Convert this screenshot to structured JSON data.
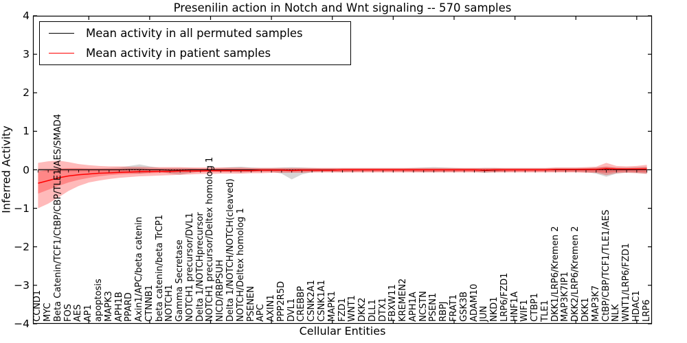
{
  "figure": {
    "title": "Presenilin action in Notch and Wnt signaling -- 570 samples",
    "xlabel": "Cellular Entities",
    "ylabel": "Inferred Activity"
  },
  "legend": {
    "items": [
      {
        "label": "Mean activity in all permuted samples",
        "color": "#000000"
      },
      {
        "label": "Mean activity in patient samples",
        "color": "#ff0000"
      }
    ]
  },
  "colors": {
    "permuted_line": "#000000",
    "patient_line": "#ff0000",
    "patient_band": "#ff0000",
    "permuted_band": "#808080",
    "zero_line": "#000000",
    "axis": "#000000"
  },
  "chart_data": {
    "type": "line",
    "title": "Presenilin action in Notch and Wnt signaling -- 570 samples",
    "xlabel": "Cellular Entities",
    "ylabel": "Inferred Activity",
    "ylim": [
      -4,
      4
    ],
    "y_ticks": [
      4,
      3,
      2,
      1,
      0,
      -1,
      -2,
      -3,
      -4
    ],
    "y_tick_labels": [
      "4",
      "3",
      "2",
      "1",
      "0",
      "−1",
      "−2",
      "−3",
      "−4"
    ],
    "grid": false,
    "legend_position": "upper left",
    "zero_reference_line": 0,
    "categories": [
      "CCND1",
      "MYC",
      "Beta Catenin/TCF1/CtBP/CBP/TLE1/AES/SMAD4",
      "FOS",
      "AES",
      "AP1",
      "apoptosis",
      "MAPK3",
      "APH1B",
      "PPARD",
      "Axin1/APC/beta catenin",
      "CTNNB1",
      "beta catenin/beta TrCP1",
      "NOTCH1",
      "Gamma Secretase",
      "NOTCH1 precursor/DVL1",
      "Delta 1/NOTCHprecursor",
      "NOTCH1 precursor/Deltex homolog 1",
      "NICD/RBPSUH",
      "Delta 1/NOTCH/NOTCH(cleaved)",
      "NOTCH/Deltex homolog 1",
      "PSENEN",
      "APC",
      "AXIN1",
      "PPP2R5D",
      "DVL1",
      "CREBBP",
      "CSNK2A1",
      "CSNK1A1",
      "MAPK1",
      "FZD1",
      "WNT1",
      "DKK2",
      "DLL1",
      "DTX1",
      "FBXW11",
      "KREMEN2",
      "APH1A",
      "NCSTN",
      "PSEN1",
      "RBPJ",
      "FRAT1",
      "GSK3B",
      "ADAM10",
      "JUN",
      "NKD1",
      "LRP6/FZD1",
      "HNF1A",
      "WIF1",
      "CTBP1",
      "TLE1",
      "DKK1/LRP6/Kremen 2",
      "MAP3K7IP1",
      "DKK2/LRP6/Kremen 2",
      "DKK1",
      "MAP3K7",
      "CtBP/CBP/TCF1/TLE1/AES",
      "NLK",
      "WNT1/LRP6/FZD1",
      "HDAC1",
      "LRP6"
    ],
    "series": [
      {
        "name": "Mean activity in all permuted samples",
        "color": "#000000",
        "values": [
          0,
          0,
          0,
          0,
          0,
          0,
          0,
          0,
          0,
          0.01,
          0.01,
          0,
          0,
          -0.01,
          -0.01,
          0,
          0,
          0,
          0,
          0,
          0,
          0,
          0,
          0,
          0,
          -0.01,
          0,
          0,
          0,
          0,
          0,
          0,
          0,
          0,
          0,
          0,
          0,
          0,
          0,
          0,
          0,
          0,
          0,
          0,
          -0.02,
          -0.01,
          0,
          0,
          0,
          0,
          0,
          0,
          0,
          0,
          0,
          0,
          0.01,
          0,
          0,
          0,
          0
        ]
      },
      {
        "name": "Mean activity in patient samples",
        "color": "#ff0000",
        "values": [
          -0.35,
          -0.28,
          -0.21,
          -0.16,
          -0.13,
          -0.11,
          -0.09,
          -0.08,
          -0.07,
          -0.06,
          -0.05,
          -0.05,
          -0.04,
          -0.04,
          -0.03,
          -0.03,
          -0.03,
          -0.02,
          -0.02,
          -0.02,
          -0.02,
          -0.02,
          -0.01,
          -0.01,
          -0.01,
          -0.02,
          -0.01,
          -0.01,
          -0.01,
          -0.01,
          0,
          0,
          0,
          0,
          0,
          0,
          0,
          0,
          0,
          0,
          0,
          0,
          0,
          0,
          -0.01,
          0,
          0,
          0,
          0,
          0,
          0,
          0.01,
          0.01,
          0.01,
          0.01,
          0.01,
          0.03,
          0.02,
          0.02,
          0.02,
          0.02
        ]
      }
    ],
    "bands": [
      {
        "name": "permuted-samples-range",
        "color": "#808080",
        "opacity": 0.32,
        "upper": [
          0.04,
          0.04,
          0.04,
          0.04,
          0.04,
          0.04,
          0.04,
          0.05,
          0.06,
          0.1,
          0.14,
          0.09,
          0.05,
          0.05,
          0.05,
          0.05,
          0.04,
          0.04,
          0.05,
          0.07,
          0.08,
          0.06,
          0.05,
          0.05,
          0.06,
          0.07,
          0.06,
          0.05,
          0.04,
          0.04,
          0.04,
          0.04,
          0.04,
          0.04,
          0.04,
          0.04,
          0.04,
          0.05,
          0.06,
          0.07,
          0.06,
          0.05,
          0.04,
          0.04,
          0.05,
          0.05,
          0.04,
          0.04,
          0.04,
          0.04,
          0.04,
          0.05,
          0.05,
          0.05,
          0.05,
          0.06,
          0.08,
          0.06,
          0.06,
          0.07,
          0.08
        ],
        "lower": [
          -0.04,
          -0.04,
          -0.04,
          -0.04,
          -0.04,
          -0.04,
          -0.04,
          -0.05,
          -0.06,
          -0.08,
          -0.1,
          -0.07,
          -0.05,
          -0.1,
          -0.13,
          -0.08,
          -0.05,
          -0.04,
          -0.05,
          -0.06,
          -0.07,
          -0.06,
          -0.05,
          -0.05,
          -0.1,
          -0.25,
          -0.12,
          -0.06,
          -0.05,
          -0.05,
          -0.06,
          -0.05,
          -0.04,
          -0.04,
          -0.04,
          -0.04,
          -0.04,
          -0.05,
          -0.06,
          -0.06,
          -0.05,
          -0.05,
          -0.04,
          -0.05,
          -0.08,
          -0.06,
          -0.05,
          -0.04,
          -0.04,
          -0.04,
          -0.04,
          -0.05,
          -0.05,
          -0.05,
          -0.06,
          -0.1,
          -0.18,
          -0.1,
          -0.07,
          -0.08,
          -0.1
        ]
      },
      {
        "name": "patient-samples-range-outer",
        "color": "#ff0000",
        "opacity": 0.27,
        "upper": [
          0.18,
          0.22,
          0.24,
          0.2,
          0.15,
          0.12,
          0.1,
          0.09,
          0.09,
          0.08,
          0.08,
          0.07,
          0.07,
          0.07,
          0.07,
          0.06,
          0.06,
          0.06,
          0.06,
          0.06,
          0.06,
          0.05,
          0.05,
          0.05,
          0.05,
          0.05,
          0.05,
          0.05,
          0.05,
          0.05,
          0.05,
          0.05,
          0.05,
          0.05,
          0.05,
          0.05,
          0.05,
          0.05,
          0.05,
          0.05,
          0.05,
          0.05,
          0.05,
          0.05,
          0.05,
          0.05,
          0.05,
          0.05,
          0.05,
          0.05,
          0.05,
          0.06,
          0.06,
          0.06,
          0.07,
          0.08,
          0.18,
          0.1,
          0.09,
          0.1,
          0.13
        ],
        "lower": [
          -1.0,
          -0.88,
          -0.72,
          -0.55,
          -0.42,
          -0.33,
          -0.28,
          -0.24,
          -0.21,
          -0.19,
          -0.17,
          -0.16,
          -0.15,
          -0.14,
          -0.13,
          -0.12,
          -0.11,
          -0.11,
          -0.1,
          -0.1,
          -0.1,
          -0.09,
          -0.09,
          -0.08,
          -0.08,
          -0.08,
          -0.08,
          -0.07,
          -0.07,
          -0.07,
          -0.07,
          -0.07,
          -0.07,
          -0.07,
          -0.07,
          -0.07,
          -0.07,
          -0.07,
          -0.07,
          -0.07,
          -0.07,
          -0.07,
          -0.07,
          -0.07,
          -0.07,
          -0.07,
          -0.07,
          -0.07,
          -0.07,
          -0.07,
          -0.07,
          -0.07,
          -0.07,
          -0.07,
          -0.08,
          -0.08,
          -0.14,
          -0.09,
          -0.08,
          -0.09,
          -0.11
        ]
      },
      {
        "name": "patient-samples-range-inner",
        "color": "#ff0000",
        "opacity": 0.27,
        "upper": [
          -0.05,
          0,
          0.03,
          0.04,
          0.04,
          0.03,
          0.03,
          0.03,
          0.03,
          0.03,
          0.03,
          0.03,
          0.03,
          0.03,
          0.03,
          0.03,
          0.03,
          0.03,
          0.03,
          0.03,
          0.03,
          0.03,
          0.03,
          0.03,
          0.03,
          0.03,
          0.03,
          0.03,
          0.03,
          0.03,
          0.03,
          0.03,
          0.03,
          0.03,
          0.03,
          0.03,
          0.03,
          0.03,
          0.03,
          0.03,
          0.03,
          0.03,
          0.03,
          0.03,
          0.03,
          0.03,
          0.03,
          0.03,
          0.03,
          0.03,
          0.03,
          0.03,
          0.03,
          0.03,
          0.04,
          0.05,
          0.08,
          0.05,
          0.04,
          0.05,
          0.06
        ],
        "lower": [
          -0.62,
          -0.52,
          -0.42,
          -0.33,
          -0.26,
          -0.21,
          -0.17,
          -0.14,
          -0.12,
          -0.11,
          -0.1,
          -0.09,
          -0.08,
          -0.08,
          -0.07,
          -0.07,
          -0.06,
          -0.06,
          -0.06,
          -0.05,
          -0.05,
          -0.05,
          -0.05,
          -0.05,
          -0.05,
          -0.05,
          -0.05,
          -0.05,
          -0.05,
          -0.05,
          -0.05,
          -0.05,
          -0.05,
          -0.05,
          -0.05,
          -0.05,
          -0.05,
          -0.05,
          -0.05,
          -0.05,
          -0.05,
          -0.05,
          -0.05,
          -0.05,
          -0.05,
          -0.05,
          -0.05,
          -0.05,
          -0.05,
          -0.05,
          -0.05,
          -0.05,
          -0.05,
          -0.05,
          -0.05,
          -0.06,
          -0.08,
          -0.06,
          -0.05,
          -0.06,
          -0.07
        ]
      }
    ]
  }
}
